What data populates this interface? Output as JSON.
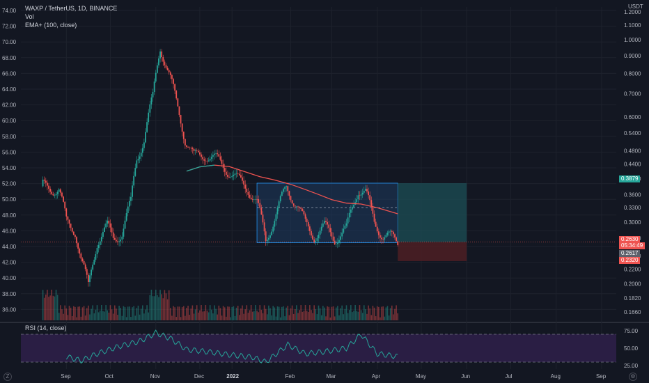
{
  "legend": {
    "title": "WAXP / TetherUS, 1D, BINANCE",
    "vol": "Vol",
    "ema": "EMA+ (100, close)"
  },
  "rsi_label": "RSI (14, close)",
  "price_unit": "USDT",
  "price_tags": {
    "current": "0.3879",
    "last": "0.2630",
    "countdown": "05:34:49",
    "ref": "0.2617",
    "stop": "0.2320"
  },
  "icons": {
    "left": "Z",
    "right": "settings-icon"
  },
  "colors": {
    "background": "#131722",
    "up": "#26a69a",
    "down": "#ef5350",
    "ema": "#ef5350",
    "ema_start": "#26a69a",
    "rsi_line": "#26a69a",
    "rsi_band": "#2a1e44",
    "box_fill": "#1e3a5f",
    "box_border": "#2196f3",
    "target_fill": "#1b4b52",
    "stop_fill": "#4a1e24"
  },
  "chart_data": [
    {
      "type": "candlestick",
      "left_axis": {
        "label": "",
        "ticks": [
          "74.00",
          "72.00",
          "70.00",
          "68.00",
          "66.00",
          "64.00",
          "62.00",
          "60.00",
          "58.00",
          "56.00",
          "54.00",
          "52.00",
          "50.00",
          "48.00",
          "46.00",
          "44.00",
          "42.00",
          "40.00",
          "38.00",
          "36.00"
        ]
      },
      "right_axis": {
        "unit": "USDT",
        "scale": "log",
        "ticks": [
          "1.2000",
          "1.1000",
          "1.0000",
          "0.9000",
          "0.8000",
          "0.7000",
          "0.6000",
          "0.5400",
          "0.4800",
          "0.4400",
          "0.4000",
          "0.3600",
          "0.3300",
          "0.3000",
          "0.2700",
          "0.2400",
          "0.2200",
          "0.2000",
          "0.1820",
          "0.1660"
        ]
      },
      "x_ticks": [
        "Sep",
        "Oct",
        "Nov",
        "Dec",
        "2022",
        "Feb",
        "Mar",
        "Apr",
        "May",
        "Jun",
        "Jul",
        "Aug",
        "Sep"
      ],
      "series": [
        {
          "name": "WAXP / TetherUS",
          "approx_close": [
            [
              "2021-08-25",
              0.38
            ],
            [
              "2021-09-05",
              0.372
            ],
            [
              "2021-09-10",
              0.3
            ],
            [
              "2021-09-16",
              0.285
            ],
            [
              "2021-09-20",
              0.235
            ],
            [
              "2021-09-25",
              0.195
            ],
            [
              "2021-10-01",
              0.265
            ],
            [
              "2021-10-08",
              0.29
            ],
            [
              "2021-10-12",
              0.27
            ],
            [
              "2021-10-18",
              0.28
            ],
            [
              "2021-10-24",
              0.34
            ],
            [
              "2021-10-28",
              0.46
            ],
            [
              "2021-11-02",
              0.52
            ],
            [
              "2021-11-08",
              0.68
            ],
            [
              "2021-11-13",
              0.96
            ],
            [
              "2021-11-18",
              0.82
            ],
            [
              "2021-11-24",
              0.66
            ],
            [
              "2021-11-30",
              0.52
            ],
            [
              "2021-12-06",
              0.46
            ],
            [
              "2021-12-14",
              0.47
            ],
            [
              "2021-12-22",
              0.45
            ],
            [
              "2021-12-30",
              0.42
            ],
            [
              "2022-01-05",
              0.395
            ],
            [
              "2022-01-12",
              0.375
            ],
            [
              "2022-01-18",
              0.34
            ],
            [
              "2022-01-24",
              0.265
            ],
            [
              "2022-01-30",
              0.31
            ],
            [
              "2022-02-07",
              0.375
            ],
            [
              "2022-02-14",
              0.34
            ],
            [
              "2022-02-20",
              0.295
            ],
            [
              "2022-02-26",
              0.275
            ],
            [
              "2022-03-05",
              0.29
            ],
            [
              "2022-03-12",
              0.27
            ],
            [
              "2022-03-20",
              0.285
            ],
            [
              "2022-03-28",
              0.375
            ],
            [
              "2022-04-02",
              0.365
            ],
            [
              "2022-04-08",
              0.3
            ],
            [
              "2022-04-14",
              0.275
            ],
            [
              "2022-04-20",
              0.27
            ],
            [
              "2022-04-24",
              0.263
            ]
          ]
        },
        {
          "name": "EMA+ (100, close)",
          "approx_values": [
            [
              "2021-12-01",
              0.42
            ],
            [
              "2021-12-10",
              0.432
            ],
            [
              "2021-12-20",
              0.437
            ],
            [
              "2021-12-30",
              0.433
            ],
            [
              "2022-01-10",
              0.418
            ],
            [
              "2022-01-20",
              0.405
            ],
            [
              "2022-01-30",
              0.396
            ],
            [
              "2022-02-10",
              0.385
            ],
            [
              "2022-02-20",
              0.372
            ],
            [
              "2022-03-01",
              0.36
            ],
            [
              "2022-03-10",
              0.348
            ],
            [
              "2022-03-20",
              0.34
            ],
            [
              "2022-03-30",
              0.338
            ],
            [
              "2022-04-10",
              0.33
            ],
            [
              "2022-04-24",
              0.317
            ]
          ]
        }
      ],
      "annotations": [
        {
          "type": "range_box",
          "from": "2022-01-18",
          "to": "2022-04-24",
          "top": 0.388,
          "bottom": 0.262
        },
        {
          "type": "long_position",
          "from": "2022-04-24",
          "to": "2022-06-10",
          "entry": 0.263,
          "target": 0.3879,
          "stop": 0.232
        }
      ],
      "last_price": 0.263,
      "grid": true
    },
    {
      "type": "line",
      "title": "RSI (14, close)",
      "ylim": [
        20,
        80
      ],
      "ticks": [
        "75.00",
        "50.00",
        "25.00"
      ],
      "bands": [
        30,
        70
      ],
      "series": [
        {
          "name": "RSI (14, close)",
          "approx_values": [
            [
              "2021-09-10",
              38
            ],
            [
              "2021-09-20",
              32
            ],
            [
              "2021-10-01",
              42
            ],
            [
              "2021-10-15",
              52
            ],
            [
              "2021-10-30",
              60
            ],
            [
              "2021-11-10",
              72
            ],
            [
              "2021-11-20",
              64
            ],
            [
              "2021-12-01",
              48
            ],
            [
              "2021-12-15",
              45
            ],
            [
              "2022-01-01",
              40
            ],
            [
              "2022-01-15",
              37
            ],
            [
              "2022-01-24",
              30
            ],
            [
              "2022-02-08",
              55
            ],
            [
              "2022-02-20",
              42
            ],
            [
              "2022-03-05",
              45
            ],
            [
              "2022-03-20",
              50
            ],
            [
              "2022-03-30",
              70
            ],
            [
              "2022-04-10",
              42
            ],
            [
              "2022-04-24",
              38
            ]
          ]
        }
      ]
    }
  ]
}
